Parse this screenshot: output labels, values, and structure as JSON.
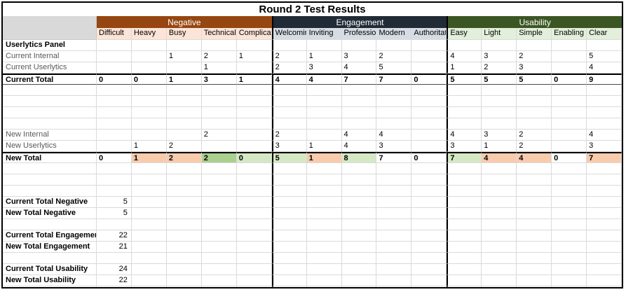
{
  "title": "Round 2 Test Results",
  "groups": [
    {
      "name": "Negative",
      "color_key": "negative",
      "columns": [
        "Difficult",
        "Heavy",
        "Busy",
        "Technical",
        "Complicated"
      ]
    },
    {
      "name": "Engagement",
      "color_key": "engagement",
      "columns": [
        "Welcoming",
        "Inviting",
        "Professional",
        "Modern",
        "Authoritative"
      ]
    },
    {
      "name": "Usability",
      "color_key": "usability",
      "columns": [
        "Easy",
        "Light",
        "Simple",
        "Enabling",
        "Clear"
      ]
    }
  ],
  "rows": [
    {
      "type": "data",
      "label": "Userlytics Panel",
      "bold": true,
      "values": [
        "",
        "",
        "",
        "",
        "",
        "",
        "",
        "",
        "",
        "",
        "",
        "",
        "",
        "",
        ""
      ]
    },
    {
      "type": "data",
      "label": "Current Internal",
      "dim": true,
      "values": [
        "",
        "",
        "1",
        "2",
        "1",
        "2",
        "1",
        "3",
        "2",
        "",
        "4",
        "3",
        "2",
        "",
        "5"
      ]
    },
    {
      "type": "data",
      "label": "Current Userlytics",
      "dim": true,
      "values": [
        "",
        "",
        "",
        "1",
        "",
        "2",
        "3",
        "4",
        "5",
        "",
        "1",
        "2",
        "3",
        "",
        "4"
      ]
    },
    {
      "type": "total",
      "label": "Current Total",
      "bottom_border": true,
      "values": [
        "0",
        "0",
        "1",
        "3",
        "1",
        "4",
        "4",
        "7",
        "7",
        "0",
        "5",
        "5",
        "5",
        "0",
        "9"
      ]
    },
    {
      "type": "blank"
    },
    {
      "type": "blank"
    },
    {
      "type": "blank"
    },
    {
      "type": "blank"
    },
    {
      "type": "data",
      "label": "New Internal",
      "dim": true,
      "values": [
        "",
        "",
        "",
        "2",
        "",
        "2",
        "",
        "4",
        "4",
        "",
        "4",
        "3",
        "2",
        "",
        "4"
      ]
    },
    {
      "type": "data",
      "label": "New Userlytics",
      "dim": true,
      "values": [
        "",
        "1",
        "2",
        "",
        "",
        "3",
        "1",
        "4",
        "3",
        "",
        "3",
        "1",
        "2",
        "",
        "3"
      ]
    },
    {
      "type": "total",
      "label": "New Total",
      "values": [
        "0",
        "1",
        "2",
        "2",
        "0",
        "5",
        "1",
        "8",
        "7",
        "0",
        "7",
        "4",
        "4",
        "0",
        "7"
      ],
      "fills": [
        "",
        "pink",
        "pink",
        "green",
        "lightgreen",
        "lightgreen",
        "pink",
        "lightgreen",
        "",
        "",
        "lightgreen",
        "pink",
        "pink",
        "",
        "pink"
      ]
    },
    {
      "type": "blank"
    },
    {
      "type": "blank"
    },
    {
      "type": "blank"
    },
    {
      "type": "summary",
      "label": "Current Total Negative",
      "value": "5"
    },
    {
      "type": "summary",
      "label": "New Total Negative",
      "value": "5"
    },
    {
      "type": "blank"
    },
    {
      "type": "summary",
      "label": "Current Total Engagement",
      "value": "22"
    },
    {
      "type": "summary",
      "label": "New Total Engagement",
      "value": "21"
    },
    {
      "type": "blank"
    },
    {
      "type": "summary",
      "label": "Current Total Usability",
      "value": "24"
    },
    {
      "type": "summary",
      "label": "New Total Usability",
      "value": "22"
    },
    {
      "type": "blank"
    }
  ],
  "colors": {
    "negative_header": "#964610",
    "engagement_header": "#212b36",
    "usability_header": "#3b5623",
    "negative_sub": "#fce4d6",
    "engagement_sub": "#d6dce4",
    "usability_sub": "#e2efda",
    "corner_gray": "#d9d9d9",
    "fill_pink": "#f8cbad",
    "fill_green": "#a9d08e",
    "fill_lightgreen": "#d5e8c4"
  }
}
